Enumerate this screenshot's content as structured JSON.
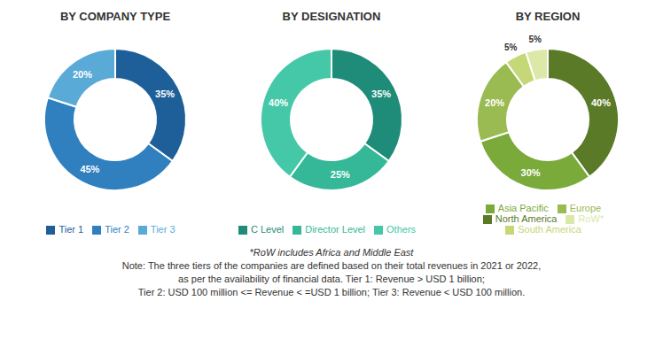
{
  "chart_data": [
    {
      "type": "pie",
      "title": "BY COMPANY TYPE",
      "categories": [
        "Tier 1",
        "Tier 2",
        "Tier 3"
      ],
      "values": [
        35,
        45,
        20
      ],
      "value_labels": [
        "35%",
        "45%",
        "20%"
      ],
      "colors": [
        "#1e5f99",
        "#3080c0",
        "#5aaad8"
      ],
      "data_labels": true,
      "legend": "bottom"
    },
    {
      "type": "pie",
      "title": "BY DESIGNATION",
      "categories": [
        "C Level",
        "Director Level",
        "Others"
      ],
      "values": [
        35,
        25,
        40
      ],
      "value_labels": [
        "35%",
        "25%",
        "40%"
      ],
      "colors": [
        "#1e8c78",
        "#35b898",
        "#45c8a8"
      ],
      "data_labels": true,
      "legend": "bottom"
    },
    {
      "type": "pie",
      "title": "BY REGION",
      "categories": [
        "North America",
        "Asia Pacific",
        "Europe",
        "South America",
        "RoW*"
      ],
      "values": [
        40,
        30,
        20,
        5,
        5
      ],
      "value_labels": [
        "40%",
        "30%",
        "20%",
        "5%",
        "5%"
      ],
      "colors": [
        "#5a7a28",
        "#7aaa3a",
        "#9aba52",
        "#c4d878",
        "#dce8a8"
      ],
      "data_labels": true,
      "legend": "bottom"
    }
  ],
  "annotations": [
    "*RoW includes Africa and Middle East",
    "Note: The three tiers of the companies are defined based on their total revenues in 2021 or 2022,",
    "as per the availability of financial data. Tier 1: Revenue > USD 1 billion;",
    "Tier 2: USD 100 million <= Revenue < =USD 1 billion; Tier 3: Revenue < USD 100 million."
  ]
}
